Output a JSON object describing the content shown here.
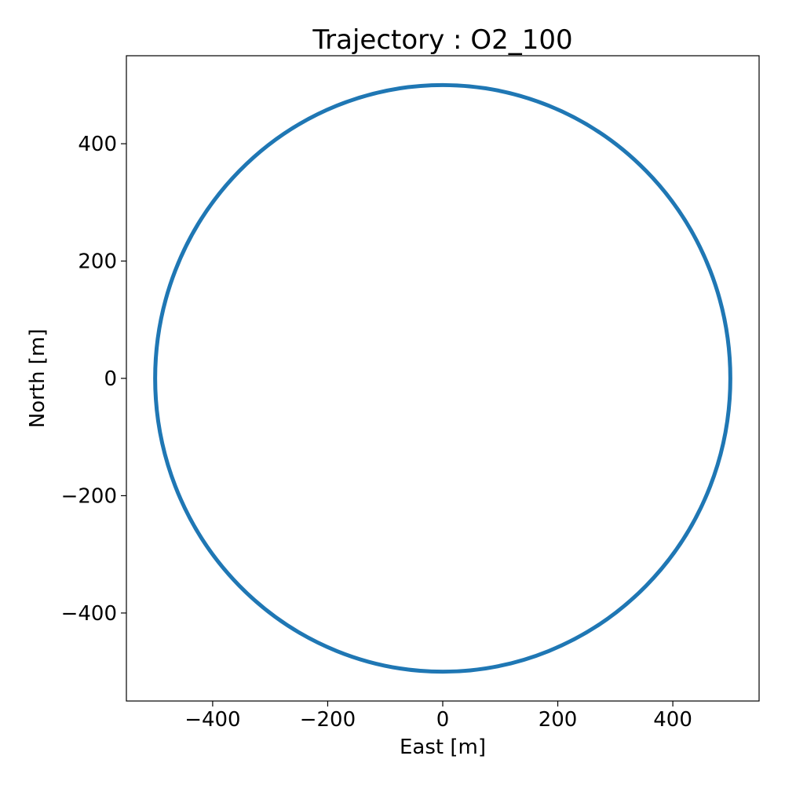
{
  "chart_data": {
    "type": "line",
    "title": "Trajectory : O2_100",
    "xlabel": "East [m]",
    "ylabel": "North [m]",
    "xlim": [
      -550,
      550
    ],
    "ylim": [
      -550,
      550
    ],
    "xticks": [
      -400,
      -200,
      0,
      200,
      400
    ],
    "yticks": [
      -400,
      -200,
      0,
      200,
      400
    ],
    "xtick_labels": [
      "−400",
      "−200",
      "0",
      "200",
      "400"
    ],
    "ytick_labels": [
      "−400",
      "−200",
      "0",
      "200",
      "400"
    ],
    "grid": false,
    "series": [
      {
        "shape": "circle",
        "center_east": 0,
        "center_north": 0,
        "radius": 500,
        "color": "#1f77b4"
      }
    ]
  }
}
